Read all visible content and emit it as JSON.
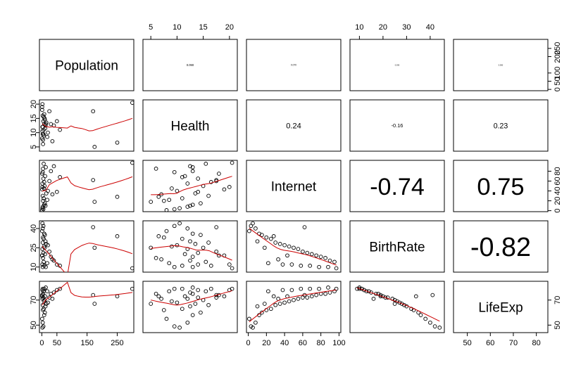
{
  "chart_data": {
    "type": "scatter",
    "variables": [
      "Population",
      "Health",
      "Internet",
      "BirthRate",
      "LifeExp"
    ],
    "correlations": [
      {
        "row": 0,
        "col": 1,
        "label": "0.090"
      },
      {
        "row": 0,
        "col": 2,
        "label": "0.070"
      },
      {
        "row": 0,
        "col": 3,
        "label": "0.030"
      },
      {
        "row": 0,
        "col": 4,
        "label": "0.050"
      },
      {
        "row": 1,
        "col": 2,
        "label": "0.24"
      },
      {
        "row": 1,
        "col": 3,
        "label": "-0.16"
      },
      {
        "row": 1,
        "col": 4,
        "label": "0.23"
      },
      {
        "row": 2,
        "col": 3,
        "label": "-0.74"
      },
      {
        "row": 2,
        "col": 4,
        "label": "0.75"
      },
      {
        "row": 3,
        "col": 4,
        "label": "-0.82"
      }
    ],
    "ranges": {
      "Population": [
        -8,
        305
      ],
      "Health": [
        3.5,
        21.5
      ],
      "Internet": [
        -2,
        102
      ],
      "BirthRate": [
        6,
        46
      ],
      "LifeExp": [
        44,
        85
      ]
    },
    "ticks": {
      "bottom": {
        "Population": [
          "0",
          "50",
          "150",
          "250"
        ],
        "Internet": [
          "0",
          "20",
          "40",
          "60",
          "80",
          "100"
        ],
        "LifeExp": [
          "50",
          "60",
          "70",
          "80"
        ]
      },
      "top": {
        "Health": [
          "5",
          "10",
          "15",
          "20"
        ],
        "BirthRate": [
          "10",
          "20",
          "30",
          "40"
        ]
      },
      "left": {
        "Health": [
          "5",
          "10",
          "15",
          "20"
        ],
        "BirthRate": [
          "10",
          "25",
          "40"
        ],
        "LifeExp": [
          "50",
          "70"
        ]
      },
      "right": {
        "Population": [
          "0",
          "50",
          "100",
          "200",
          "250"
        ],
        "Internet": [
          "0",
          "20",
          "40",
          "60",
          "80"
        ],
        "LifeExp": [
          "50",
          "70"
        ]
      }
    },
    "observations": [
      [
        2,
        10.5,
        5,
        44,
        48
      ],
      [
        3,
        12.0,
        8,
        40,
        52
      ],
      [
        5,
        9.5,
        3,
        42,
        49
      ],
      [
        1,
        8.0,
        1,
        38,
        55
      ],
      [
        8,
        13.0,
        12,
        36,
        58
      ],
      [
        10,
        14.5,
        15,
        35,
        60
      ],
      [
        4,
        7.5,
        20,
        33,
        62
      ],
      [
        6,
        11.0,
        25,
        32,
        63
      ],
      [
        12,
        12.5,
        10,
        30,
        65
      ],
      [
        3,
        16.0,
        30,
        29,
        66
      ],
      [
        15,
        13.5,
        35,
        28,
        67
      ],
      [
        20,
        10.0,
        40,
        27,
        68
      ],
      [
        7,
        9.0,
        45,
        26,
        69
      ],
      [
        9,
        15.0,
        50,
        25,
        70
      ],
      [
        2,
        12.0,
        55,
        24,
        71
      ],
      [
        25,
        17.5,
        60,
        22,
        72
      ],
      [
        5,
        14.0,
        65,
        21,
        72
      ],
      [
        11,
        11.5,
        70,
        20,
        73
      ],
      [
        1,
        18.0,
        75,
        19,
        74
      ],
      [
        30,
        13.0,
        80,
        18,
        75
      ],
      [
        4,
        6.0,
        85,
        17,
        75
      ],
      [
        40,
        12.5,
        90,
        15,
        76
      ],
      [
        6,
        15.5,
        95,
        14,
        77
      ],
      [
        18,
        8.5,
        22,
        13,
        77
      ],
      [
        50,
        14.0,
        38,
        12,
        78
      ],
      [
        2,
        20.0,
        48,
        12,
        78
      ],
      [
        8,
        16.5,
        58,
        11,
        79
      ],
      [
        60,
        11.0,
        68,
        11,
        79
      ],
      [
        3,
        9.5,
        78,
        10,
        79
      ],
      [
        13,
        13.0,
        88,
        10,
        80
      ],
      [
        35,
        7.0,
        33,
        16,
        71
      ],
      [
        1,
        19.0,
        43,
        19,
        73
      ],
      [
        170,
        17.5,
        62,
        41,
        74
      ],
      [
        175,
        5.0,
        18,
        25,
        67
      ],
      [
        250,
        6.5,
        28,
        34,
        73
      ],
      [
        300,
        20.5,
        97,
        9,
        79
      ]
    ],
    "smooth_color": "#cc0000",
    "point_color": "#000000"
  }
}
